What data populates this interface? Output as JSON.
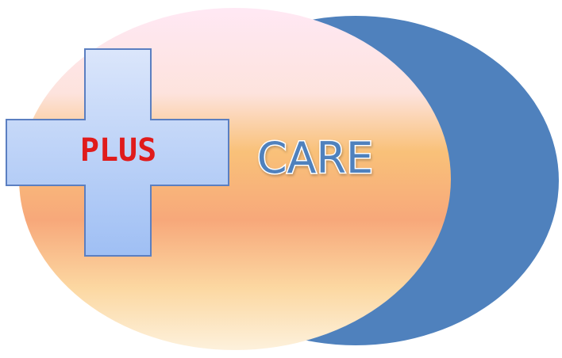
{
  "logo": {
    "cross_text": "PLUS",
    "main_text": "CARE"
  },
  "colors": {
    "crescent_blue": "#4f81bd",
    "cross_fill_top": "#dbe6fb",
    "cross_fill_bottom": "#9fbff4",
    "cross_border": "#5b7fc1",
    "plus_text": "#e01b1b",
    "care_text_fill": "#4f81bd",
    "care_text_outline": "#ffffff",
    "oval_gradient": [
      "#ffe8f4",
      "#f9c179",
      "#f7a87a",
      "#fcd8a2",
      "#fdf1dc"
    ]
  }
}
